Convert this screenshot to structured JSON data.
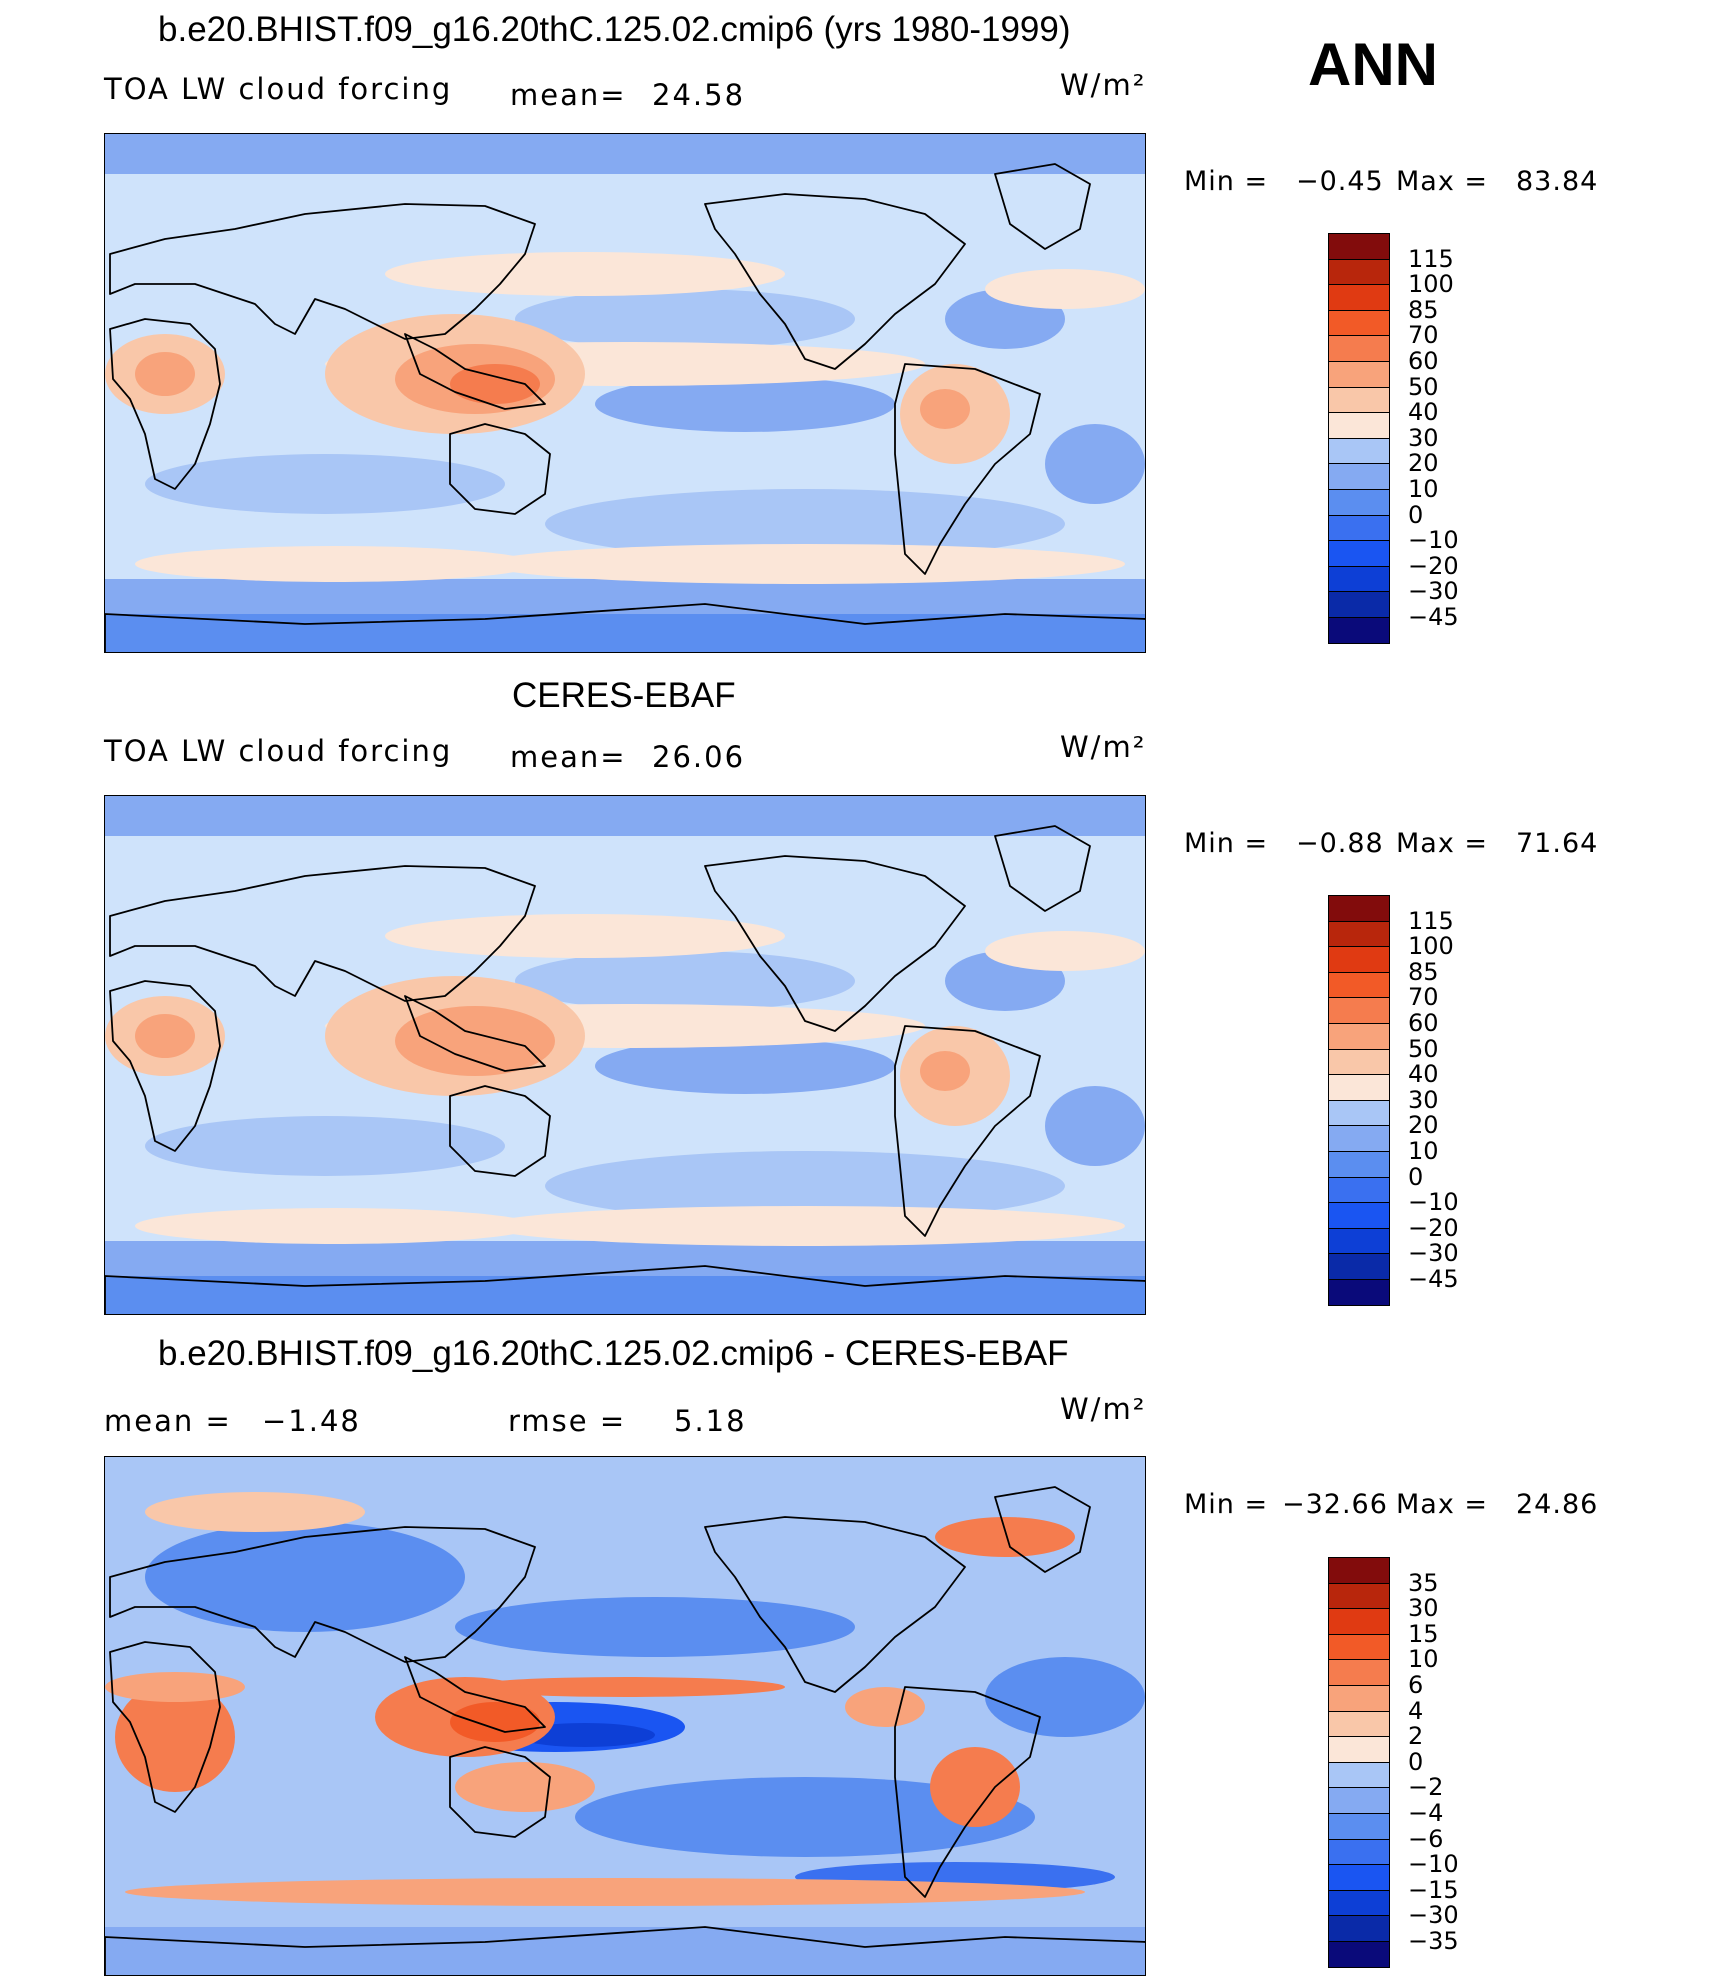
{
  "season": "ANN",
  "colors": {
    "positive_scale": [
      "#0a0a7a",
      "#0a2aa8",
      "#0d3fd6",
      "#1a55f2",
      "#3a70f0",
      "#5b8ef0",
      "#85aaf2",
      "#a9c6f6",
      "#cfe3fb",
      "#fbe6d8",
      "#f9c7a9",
      "#f8a37b",
      "#f57c4e",
      "#f25a27",
      "#e03a12",
      "#b8260c",
      "#820c0c"
    ],
    "diff_scale": [
      "#0a0a7a",
      "#0a2aa8",
      "#0d3fd6",
      "#1a55f2",
      "#3a70f0",
      "#5b8ef0",
      "#85aaf2",
      "#a9c6f6",
      "#cfe3fb",
      "#fbe6d8",
      "#f9c7a9",
      "#f8a37b",
      "#f57c4e",
      "#f25a27",
      "#e03a12",
      "#b8260c",
      "#820c0c"
    ]
  },
  "panels": [
    {
      "title": "b.e20.BHIST.f09_g16.20thC.125.02.cmip6 (yrs 1980-1999)",
      "variable": "TOA LW cloud forcing",
      "stat_left": "",
      "stat_mid_label": "mean=",
      "stat_mid_value": "24.58",
      "units": "W/m²",
      "min_label": "Min =",
      "min_value": "−0.45",
      "max_label": "Max =",
      "max_value": "83.84",
      "colorbar_levels": [
        "115",
        "100",
        "85",
        "70",
        "60",
        "50",
        "40",
        "30",
        "20",
        "10",
        "0",
        "−10",
        "−20",
        "−30",
        "−45"
      ]
    },
    {
      "title": "CERES-EBAF",
      "variable": "TOA LW cloud forcing",
      "stat_left": "",
      "stat_mid_label": "mean=",
      "stat_mid_value": "26.06",
      "units": "W/m²",
      "min_label": "Min =",
      "min_value": "−0.88",
      "max_label": "Max =",
      "max_value": "71.64",
      "colorbar_levels": [
        "115",
        "100",
        "85",
        "70",
        "60",
        "50",
        "40",
        "30",
        "20",
        "10",
        "0",
        "−10",
        "−20",
        "−30",
        "−45"
      ]
    },
    {
      "title": "b.e20.BHIST.f09_g16.20thC.125.02.cmip6 - CERES-EBAF",
      "variable": "",
      "stat_left_label": "mean =",
      "stat_left_value": "−1.48",
      "stat_mid_label": "rmse =",
      "stat_mid_value": "5.18",
      "units": "W/m²",
      "min_label": "Min =",
      "min_value": "−32.66",
      "max_label": "Max =",
      "max_value": "24.86",
      "colorbar_levels": [
        "35",
        "30",
        "15",
        "10",
        "6",
        "4",
        "2",
        "0",
        "−2",
        "−4",
        "−6",
        "−10",
        "−15",
        "−30",
        "−35"
      ]
    }
  ],
  "chart_data": [
    {
      "type": "heatmap",
      "title": "b.e20.BHIST.f09_g16.20thC.125.02.cmip6 (yrs 1980-1999)",
      "variable": "TOA LW cloud forcing",
      "units": "W/m²",
      "mean": 24.58,
      "min": -0.45,
      "max": 83.84,
      "contour_levels": [
        -45,
        -30,
        -20,
        -10,
        0,
        10,
        20,
        30,
        40,
        50,
        60,
        70,
        85,
        100,
        115
      ]
    },
    {
      "type": "heatmap",
      "title": "CERES-EBAF",
      "variable": "TOA LW cloud forcing",
      "units": "W/m²",
      "mean": 26.06,
      "min": -0.88,
      "max": 71.64,
      "contour_levels": [
        -45,
        -30,
        -20,
        -10,
        0,
        10,
        20,
        30,
        40,
        50,
        60,
        70,
        85,
        100,
        115
      ]
    },
    {
      "type": "heatmap",
      "title": "b.e20.BHIST.f09_g16.20thC.125.02.cmip6 - CERES-EBAF",
      "units": "W/m²",
      "mean": -1.48,
      "rmse": 5.18,
      "min": -32.66,
      "max": 24.86,
      "contour_levels": [
        -35,
        -30,
        -15,
        -10,
        -6,
        -4,
        -2,
        0,
        2,
        4,
        6,
        10,
        15,
        30,
        35
      ]
    }
  ]
}
